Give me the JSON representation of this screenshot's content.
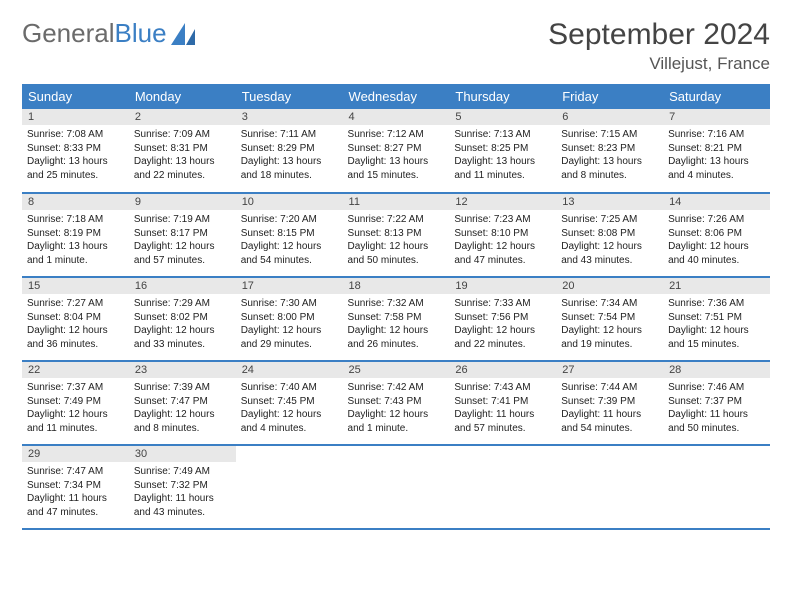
{
  "logo": {
    "text1": "General",
    "text2": "Blue"
  },
  "title": "September 2024",
  "location": "Villejust, France",
  "colors": {
    "header_bg": "#3b7fc4",
    "header_text": "#ffffff",
    "daynum_bg": "#e8e8e8",
    "row_border": "#3b7fc4",
    "logo_gray": "#6b6b6b",
    "logo_blue": "#3b7fc4"
  },
  "weekdays": [
    "Sunday",
    "Monday",
    "Tuesday",
    "Wednesday",
    "Thursday",
    "Friday",
    "Saturday"
  ],
  "labels": {
    "sunrise": "Sunrise:",
    "sunset": "Sunset:",
    "daylight": "Daylight:"
  },
  "days": [
    {
      "n": "1",
      "sr": "7:08 AM",
      "ss": "8:33 PM",
      "dl": "13 hours and 25 minutes."
    },
    {
      "n": "2",
      "sr": "7:09 AM",
      "ss": "8:31 PM",
      "dl": "13 hours and 22 minutes."
    },
    {
      "n": "3",
      "sr": "7:11 AM",
      "ss": "8:29 PM",
      "dl": "13 hours and 18 minutes."
    },
    {
      "n": "4",
      "sr": "7:12 AM",
      "ss": "8:27 PM",
      "dl": "13 hours and 15 minutes."
    },
    {
      "n": "5",
      "sr": "7:13 AM",
      "ss": "8:25 PM",
      "dl": "13 hours and 11 minutes."
    },
    {
      "n": "6",
      "sr": "7:15 AM",
      "ss": "8:23 PM",
      "dl": "13 hours and 8 minutes."
    },
    {
      "n": "7",
      "sr": "7:16 AM",
      "ss": "8:21 PM",
      "dl": "13 hours and 4 minutes."
    },
    {
      "n": "8",
      "sr": "7:18 AM",
      "ss": "8:19 PM",
      "dl": "13 hours and 1 minute."
    },
    {
      "n": "9",
      "sr": "7:19 AM",
      "ss": "8:17 PM",
      "dl": "12 hours and 57 minutes."
    },
    {
      "n": "10",
      "sr": "7:20 AM",
      "ss": "8:15 PM",
      "dl": "12 hours and 54 minutes."
    },
    {
      "n": "11",
      "sr": "7:22 AM",
      "ss": "8:13 PM",
      "dl": "12 hours and 50 minutes."
    },
    {
      "n": "12",
      "sr": "7:23 AM",
      "ss": "8:10 PM",
      "dl": "12 hours and 47 minutes."
    },
    {
      "n": "13",
      "sr": "7:25 AM",
      "ss": "8:08 PM",
      "dl": "12 hours and 43 minutes."
    },
    {
      "n": "14",
      "sr": "7:26 AM",
      "ss": "8:06 PM",
      "dl": "12 hours and 40 minutes."
    },
    {
      "n": "15",
      "sr": "7:27 AM",
      "ss": "8:04 PM",
      "dl": "12 hours and 36 minutes."
    },
    {
      "n": "16",
      "sr": "7:29 AM",
      "ss": "8:02 PM",
      "dl": "12 hours and 33 minutes."
    },
    {
      "n": "17",
      "sr": "7:30 AM",
      "ss": "8:00 PM",
      "dl": "12 hours and 29 minutes."
    },
    {
      "n": "18",
      "sr": "7:32 AM",
      "ss": "7:58 PM",
      "dl": "12 hours and 26 minutes."
    },
    {
      "n": "19",
      "sr": "7:33 AM",
      "ss": "7:56 PM",
      "dl": "12 hours and 22 minutes."
    },
    {
      "n": "20",
      "sr": "7:34 AM",
      "ss": "7:54 PM",
      "dl": "12 hours and 19 minutes."
    },
    {
      "n": "21",
      "sr": "7:36 AM",
      "ss": "7:51 PM",
      "dl": "12 hours and 15 minutes."
    },
    {
      "n": "22",
      "sr": "7:37 AM",
      "ss": "7:49 PM",
      "dl": "12 hours and 11 minutes."
    },
    {
      "n": "23",
      "sr": "7:39 AM",
      "ss": "7:47 PM",
      "dl": "12 hours and 8 minutes."
    },
    {
      "n": "24",
      "sr": "7:40 AM",
      "ss": "7:45 PM",
      "dl": "12 hours and 4 minutes."
    },
    {
      "n": "25",
      "sr": "7:42 AM",
      "ss": "7:43 PM",
      "dl": "12 hours and 1 minute."
    },
    {
      "n": "26",
      "sr": "7:43 AM",
      "ss": "7:41 PM",
      "dl": "11 hours and 57 minutes."
    },
    {
      "n": "27",
      "sr": "7:44 AM",
      "ss": "7:39 PM",
      "dl": "11 hours and 54 minutes."
    },
    {
      "n": "28",
      "sr": "7:46 AM",
      "ss": "7:37 PM",
      "dl": "11 hours and 50 minutes."
    },
    {
      "n": "29",
      "sr": "7:47 AM",
      "ss": "7:34 PM",
      "dl": "11 hours and 47 minutes."
    },
    {
      "n": "30",
      "sr": "7:49 AM",
      "ss": "7:32 PM",
      "dl": "11 hours and 43 minutes."
    }
  ]
}
